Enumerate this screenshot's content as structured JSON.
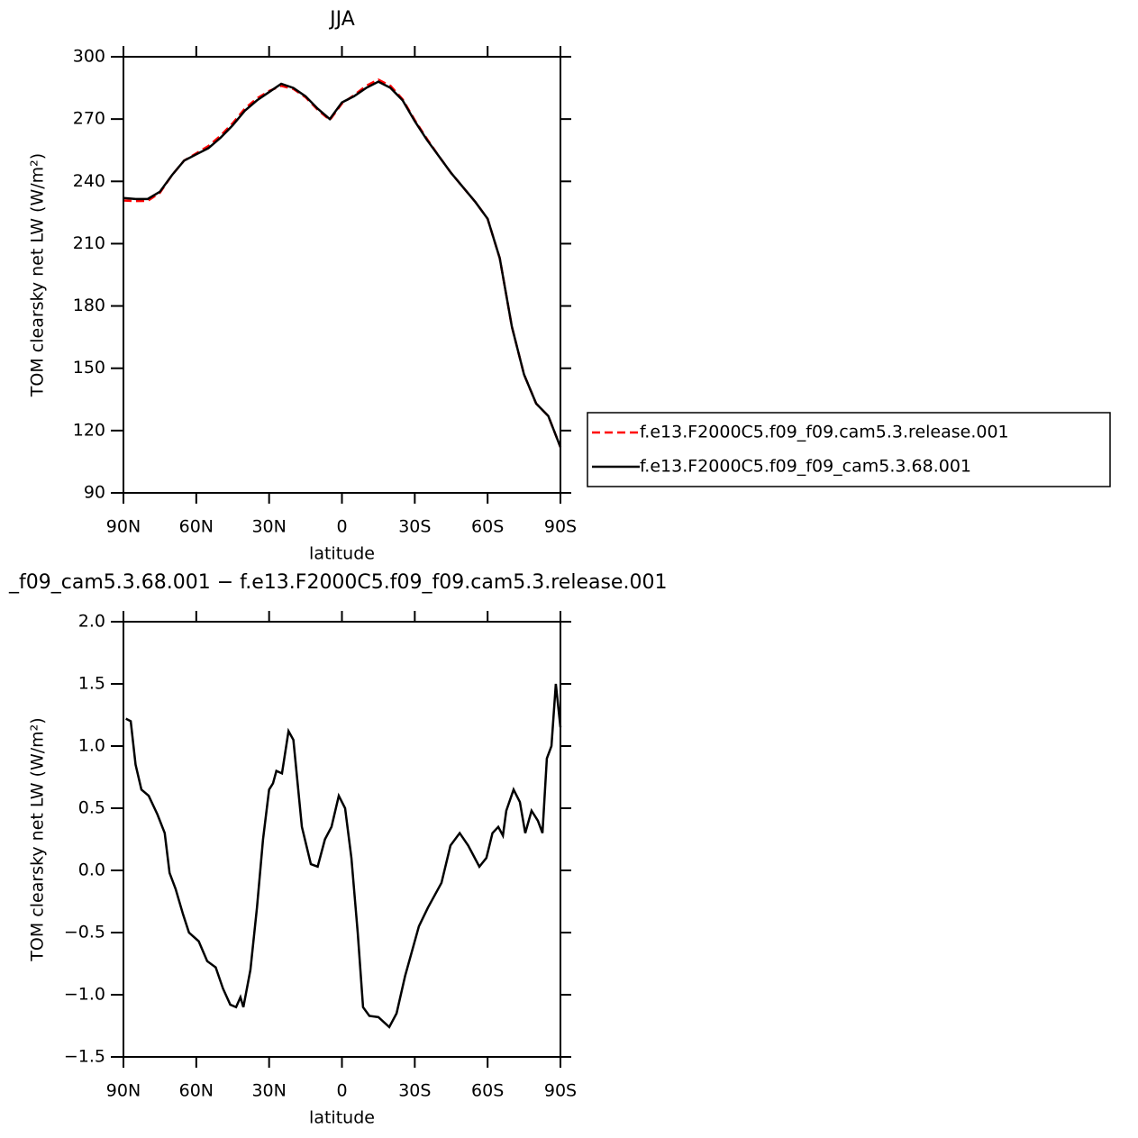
{
  "chart_data": [
    {
      "type": "line",
      "title": "JJA",
      "x_label": "latitude",
      "y_label": "TOM clearsky net LW (W/m²)",
      "x": [
        90,
        85,
        80,
        75,
        70,
        65,
        60,
        55,
        50,
        45,
        40,
        35,
        30,
        25,
        20,
        15,
        10,
        5,
        0,
        -5,
        -10,
        -15,
        -20,
        -25,
        -30,
        -35,
        -40,
        -45,
        -50,
        -55,
        -60,
        -65,
        -70,
        -75,
        -80,
        -85,
        -90
      ],
      "series": [
        {
          "name": "f.e13.F2000C5.f09_f09.cam5.3.release.001",
          "color": "#ff0000",
          "dashed": true,
          "values": [
            230.8,
            230.5,
            230.6,
            234.5,
            243,
            250,
            253.5,
            257,
            262,
            268,
            275,
            280,
            283.5,
            286,
            284.5,
            280.5,
            274.5,
            269.5,
            277.5,
            281.5,
            286,
            289,
            286,
            279.5,
            269.5,
            260.5,
            252,
            244,
            237,
            230,
            222,
            203,
            170,
            147,
            133,
            127,
            112
          ]
        },
        {
          "name": "f.e13.F2000C5.f09_f09_cam5.3.68.001",
          "color": "#000000",
          "dashed": false,
          "values": [
            232,
            231.5,
            231.5,
            235,
            243,
            250,
            253,
            256,
            261,
            267,
            274,
            279,
            283,
            287,
            285,
            281,
            275,
            270,
            278,
            281,
            285,
            288,
            285,
            279,
            269,
            260,
            252,
            244,
            237,
            230,
            222,
            203,
            170,
            147,
            133,
            127,
            112
          ]
        }
      ],
      "xlim": [
        90,
        -90
      ],
      "xticks": [
        {
          "value": 90,
          "label": "90N"
        },
        {
          "value": 60,
          "label": "60N"
        },
        {
          "value": 30,
          "label": "30N"
        },
        0,
        {
          "value": -30,
          "label": "30S"
        },
        {
          "value": -60,
          "label": "60S"
        },
        {
          "value": -90,
          "label": "90S"
        }
      ],
      "ylim": [
        90,
        300
      ],
      "yticks": [
        90,
        120,
        150,
        180,
        210,
        240,
        270,
        300
      ]
    },
    {
      "type": "line",
      "title": "_f09_cam5.3.68.001 − f.e13.F2000C5.f09_f09.cam5.3.release.001",
      "x_label": "latitude",
      "y_label": "TOM clearsky net LW (W/m²)",
      "x": [
        89.0,
        87.0,
        85.0,
        82.6,
        79.6,
        76.0,
        73.0,
        71.0,
        68.5,
        65.5,
        63.0,
        59.0,
        55.5,
        52.0,
        49.0,
        46.0,
        43.6,
        41.8,
        40.6,
        37.7,
        35.0,
        32.5,
        30.0,
        28.4,
        27.0,
        24.7,
        22.0,
        20.0,
        16.5,
        12.8,
        10.0,
        7.0,
        4.3,
        1.3,
        -1.3,
        -3.9,
        -6.5,
        -8.7,
        -11.3,
        -15.0,
        -19.5,
        -22.5,
        -26.0,
        -31.7,
        -35.4,
        -41.0,
        -44.7,
        -48.5,
        -52.0,
        -56.6,
        -59.5,
        -62.0,
        -64.4,
        -66.3,
        -67.7,
        -70.7,
        -73.3,
        -75.5,
        -78.1,
        -80.7,
        -82.6,
        -84.4,
        -86.3,
        -88.1,
        -90.0
      ],
      "values": [
        1.22,
        1.2,
        0.85,
        0.65,
        0.6,
        0.45,
        0.3,
        -0.02,
        -0.15,
        -0.35,
        -0.5,
        -0.57,
        -0.73,
        -0.78,
        -0.95,
        -1.08,
        -1.1,
        -1.02,
        -1.1,
        -0.8,
        -0.3,
        0.25,
        0.65,
        0.7,
        0.8,
        0.78,
        1.12,
        1.05,
        0.35,
        0.05,
        0.03,
        0.25,
        0.35,
        0.6,
        0.5,
        0.1,
        -0.5,
        -1.1,
        -1.17,
        -1.18,
        -1.26,
        -1.15,
        -0.85,
        -0.45,
        -0.3,
        -0.1,
        0.2,
        0.3,
        0.2,
        0.03,
        0.1,
        0.3,
        0.35,
        0.28,
        0.48,
        0.65,
        0.55,
        0.3,
        0.48,
        0.4,
        0.3,
        0.9,
        1.0,
        1.5,
        1.15
      ],
      "color": "#000000",
      "xlim": [
        90,
        -90
      ],
      "xticks": [
        {
          "value": 90,
          "label": "90N"
        },
        {
          "value": 60,
          "label": "60N"
        },
        {
          "value": 30,
          "label": "30N"
        },
        0,
        {
          "value": -30,
          "label": "30S"
        },
        {
          "value": -60,
          "label": "60S"
        },
        {
          "value": -90,
          "label": "90S"
        }
      ],
      "ylim": [
        -1.5,
        2.0
      ],
      "yticks": [
        {
          "value": -1.5,
          "label": "−1.5"
        },
        {
          "value": -1.0,
          "label": "−1.0"
        },
        {
          "value": -0.5,
          "label": "−0.5"
        },
        {
          "value": 0,
          "label": "0.0"
        },
        0.5,
        {
          "value": 1.0,
          "label": "1.0"
        },
        1.5,
        {
          "value": 2.0,
          "label": "2.0"
        }
      ]
    }
  ]
}
